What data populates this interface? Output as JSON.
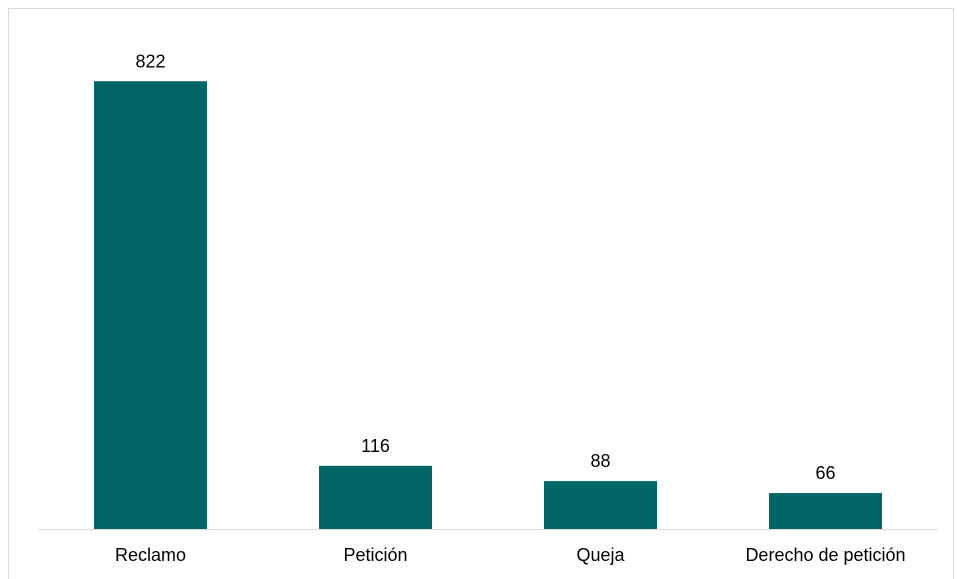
{
  "chart_data": {
    "type": "bar",
    "categories": [
      "Reclamo",
      "Petición",
      "Queja",
      "Derecho de petición"
    ],
    "values": [
      822,
      116,
      88,
      66
    ],
    "title": "",
    "xlabel": "",
    "ylabel": "",
    "ylim": [
      0,
      850
    ],
    "grid": false,
    "legend": "none",
    "data_labels": [
      "822",
      "116",
      "88",
      "66"
    ],
    "bar_color": "#006666",
    "axis_color": "#d9d9d9"
  }
}
